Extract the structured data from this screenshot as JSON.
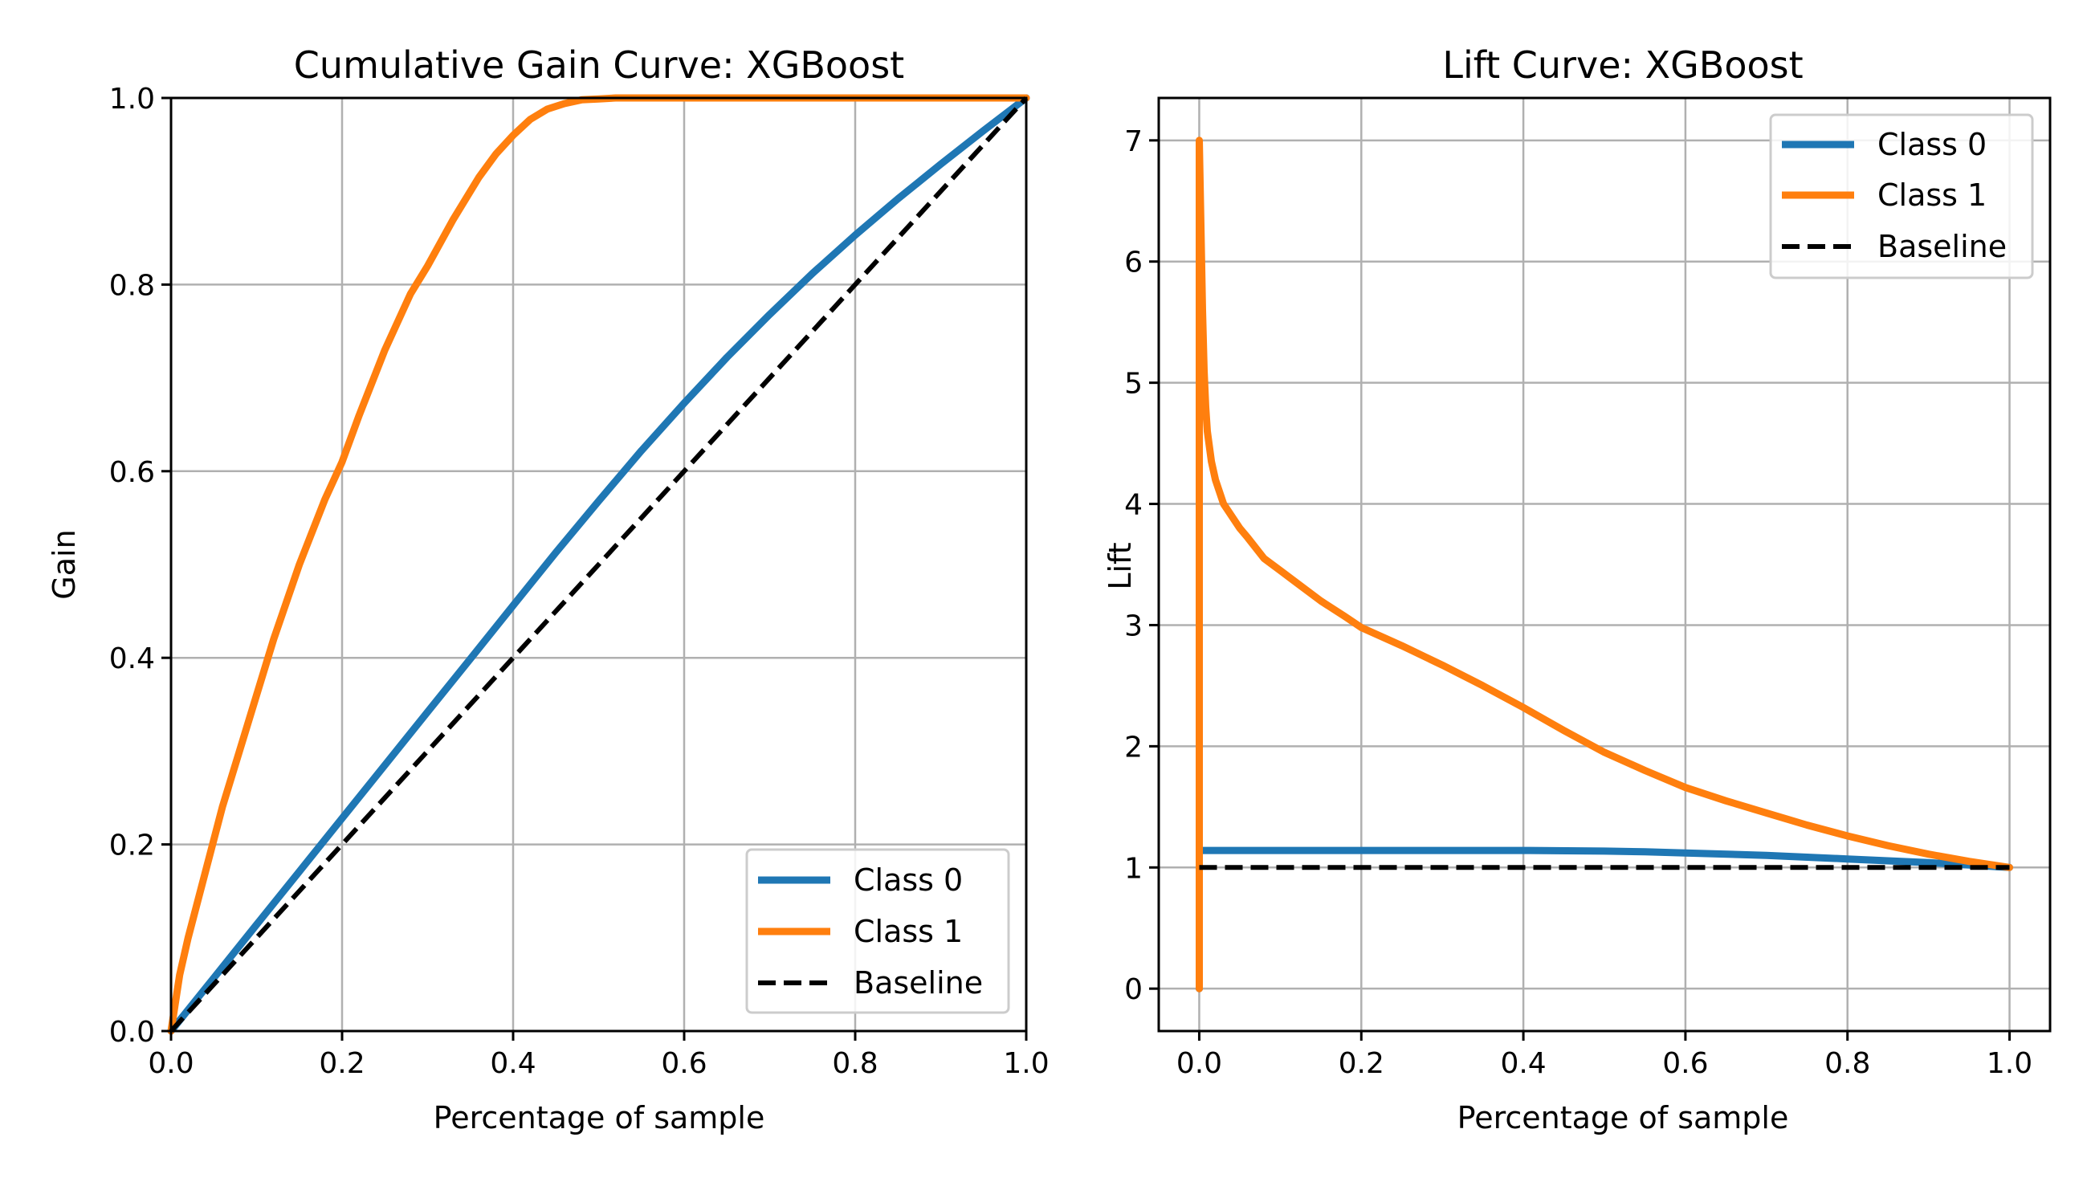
{
  "chart_data": [
    {
      "type": "line",
      "title": "Cumulative Gain Curve: XGBoost",
      "xlabel": "Percentage of sample",
      "ylabel": "Gain",
      "xlim": [
        0.0,
        1.0
      ],
      "ylim": [
        0.0,
        1.0
      ],
      "xticks": [
        0.0,
        0.2,
        0.4,
        0.6,
        0.8,
        1.0
      ],
      "xtick_labels": [
        "0.0",
        "0.2",
        "0.4",
        "0.6",
        "0.8",
        "1.0"
      ],
      "yticks": [
        0.0,
        0.2,
        0.4,
        0.6,
        0.8,
        1.0
      ],
      "ytick_labels": [
        "0.0",
        "0.2",
        "0.4",
        "0.6",
        "0.8",
        "1.0"
      ],
      "grid": true,
      "legend_position": "lower-right",
      "series": [
        {
          "name": "Class 0",
          "color": "#1f77b4",
          "style": "solid",
          "x": [
            0.0,
            0.05,
            0.1,
            0.15,
            0.2,
            0.25,
            0.3,
            0.35,
            0.4,
            0.45,
            0.5,
            0.55,
            0.6,
            0.65,
            0.7,
            0.75,
            0.8,
            0.85,
            0.9,
            0.95,
            1.0
          ],
          "y": [
            0.0,
            0.057,
            0.114,
            0.171,
            0.228,
            0.285,
            0.342,
            0.399,
            0.456,
            0.513,
            0.568,
            0.622,
            0.673,
            0.722,
            0.768,
            0.812,
            0.853,
            0.892,
            0.929,
            0.965,
            1.0
          ]
        },
        {
          "name": "Class 1",
          "color": "#ff7f0e",
          "style": "solid",
          "x": [
            0.0,
            0.01,
            0.02,
            0.04,
            0.06,
            0.08,
            0.1,
            0.12,
            0.15,
            0.18,
            0.2,
            0.22,
            0.25,
            0.28,
            0.3,
            0.33,
            0.36,
            0.38,
            0.4,
            0.42,
            0.44,
            0.46,
            0.48,
            0.5,
            0.52,
            0.55,
            0.6,
            0.7,
            0.8,
            0.9,
            1.0
          ],
          "y": [
            0.0,
            0.06,
            0.1,
            0.17,
            0.24,
            0.3,
            0.36,
            0.42,
            0.5,
            0.57,
            0.61,
            0.66,
            0.73,
            0.79,
            0.82,
            0.87,
            0.915,
            0.94,
            0.96,
            0.977,
            0.988,
            0.994,
            0.998,
            0.999,
            1.0,
            1.0,
            1.0,
            1.0,
            1.0,
            1.0,
            1.0
          ]
        },
        {
          "name": "Baseline",
          "color": "#000000",
          "style": "dashed",
          "x": [
            0.0,
            1.0
          ],
          "y": [
            0.0,
            1.0
          ]
        }
      ]
    },
    {
      "type": "line",
      "title": "Lift Curve: XGBoost",
      "xlabel": "Percentage of sample",
      "ylabel": "Lift",
      "xlim": [
        -0.05,
        1.05
      ],
      "ylim": [
        -0.35,
        7.35
      ],
      "xticks": [
        0.0,
        0.2,
        0.4,
        0.6,
        0.8,
        1.0
      ],
      "xtick_labels": [
        "0.0",
        "0.2",
        "0.4",
        "0.6",
        "0.8",
        "1.0"
      ],
      "yticks": [
        0,
        1,
        2,
        3,
        4,
        5,
        6,
        7
      ],
      "ytick_labels": [
        "0",
        "1",
        "2",
        "3",
        "4",
        "5",
        "6",
        "7"
      ],
      "grid": true,
      "legend_position": "upper-right",
      "series": [
        {
          "name": "Class 0",
          "color": "#1f77b4",
          "style": "solid",
          "x": [
            0.0,
            0.0,
            0.002,
            0.05,
            0.1,
            0.2,
            0.3,
            0.4,
            0.5,
            0.55,
            0.6,
            0.7,
            0.8,
            0.9,
            1.0
          ],
          "y": [
            0.0,
            1.12,
            1.14,
            1.14,
            1.14,
            1.14,
            1.14,
            1.14,
            1.135,
            1.13,
            1.12,
            1.1,
            1.07,
            1.04,
            1.0
          ]
        },
        {
          "name": "Class 1",
          "color": "#ff7f0e",
          "style": "solid",
          "x": [
            0.0,
            0.0,
            0.002,
            0.004,
            0.006,
            0.008,
            0.01,
            0.015,
            0.02,
            0.03,
            0.04,
            0.05,
            0.06,
            0.08,
            0.1,
            0.12,
            0.15,
            0.18,
            0.2,
            0.25,
            0.3,
            0.35,
            0.4,
            0.45,
            0.5,
            0.55,
            0.6,
            0.65,
            0.7,
            0.75,
            0.8,
            0.85,
            0.9,
            0.95,
            1.0
          ],
          "y": [
            0.0,
            7.0,
            6.3,
            5.6,
            5.1,
            4.8,
            4.6,
            4.35,
            4.2,
            4.0,
            3.9,
            3.8,
            3.72,
            3.55,
            3.45,
            3.35,
            3.2,
            3.07,
            2.98,
            2.83,
            2.67,
            2.5,
            2.32,
            2.13,
            1.95,
            1.8,
            1.66,
            1.55,
            1.45,
            1.35,
            1.26,
            1.18,
            1.11,
            1.05,
            1.0
          ]
        },
        {
          "name": "Baseline",
          "color": "#000000",
          "style": "dashed",
          "x": [
            0.0,
            1.0
          ],
          "y": [
            1.0,
            1.0
          ]
        }
      ]
    }
  ]
}
